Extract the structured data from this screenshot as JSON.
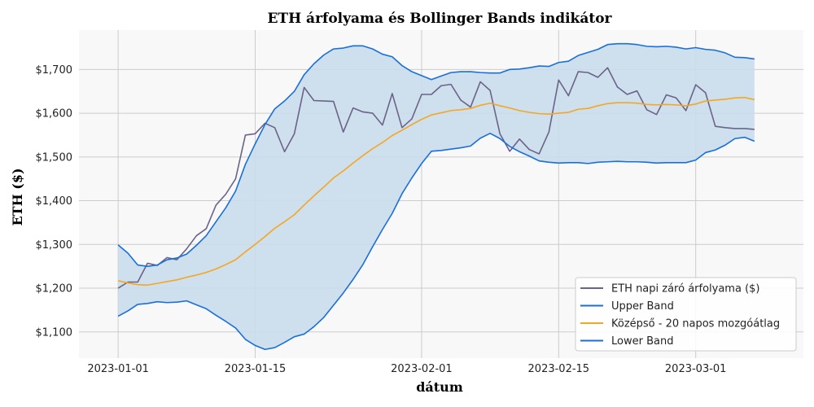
{
  "chart_data": {
    "type": "line",
    "title": "ETH árfolyama és Bollinger Bands indikátor",
    "xlabel": "dátum",
    "ylabel": "ETH ($)",
    "ylim": [
      1040,
      1790
    ],
    "xlim": [
      "2022-12-28",
      "2023-03-12"
    ],
    "x_ticks": [
      "2023-01-01",
      "2023-01-15",
      "2023-02-01",
      "2023-02-15",
      "2023-03-01"
    ],
    "y_ticks": [
      1100,
      1200,
      1300,
      1400,
      1500,
      1600,
      1700
    ],
    "y_tick_labels": [
      "$1,100",
      "$1,200",
      "$1,300",
      "$1,400",
      "$1,500",
      "$1,600",
      "$1,700"
    ],
    "grid": true,
    "legend_position": "bottom-right",
    "colors": {
      "close": "#6b6389",
      "upper": "#1a6fd8",
      "middle": "#f5a623",
      "lower": "#1a6fd8",
      "band_fill": "#c9dceb",
      "plot_bg": "#f8f8f8",
      "grid": "#cccccc"
    },
    "start_date": "2023-01-01",
    "series": [
      {
        "key": "close",
        "name": "ETH napi záró árfolyama ($)",
        "values": [
          1200,
          1214,
          1214,
          1257,
          1252,
          1270,
          1265,
          1290,
          1320,
          1336,
          1390,
          1415,
          1450,
          1550,
          1553,
          1577,
          1567,
          1512,
          1553,
          1659,
          1629,
          1628,
          1627,
          1557,
          1612,
          1603,
          1600,
          1573,
          1645,
          1567,
          1587,
          1643,
          1643,
          1663,
          1666,
          1630,
          1614,
          1672,
          1652,
          1553,
          1513,
          1541,
          1517,
          1507,
          1557,
          1676,
          1640,
          1695,
          1693,
          1682,
          1704,
          1660,
          1643,
          1651,
          1608,
          1597,
          1642,
          1635,
          1606,
          1665,
          1647,
          1570,
          1567,
          1565,
          1565,
          1563
        ]
      },
      {
        "key": "upper",
        "name": "Upper Band",
        "values": [
          1299,
          1280,
          1253,
          1250,
          1253,
          1265,
          1269,
          1278,
          1298,
          1320,
          1352,
          1384,
          1422,
          1483,
          1530,
          1574,
          1610,
          1628,
          1650,
          1688,
          1713,
          1733,
          1747,
          1749,
          1754,
          1754,
          1747,
          1735,
          1729,
          1709,
          1695,
          1686,
          1677,
          1685,
          1693,
          1695,
          1695,
          1693,
          1692,
          1692,
          1700,
          1701,
          1704,
          1708,
          1707,
          1716,
          1719,
          1732,
          1739,
          1746,
          1757,
          1759,
          1759,
          1757,
          1753,
          1752,
          1753,
          1751,
          1747,
          1750,
          1746,
          1744,
          1738,
          1728,
          1727,
          1724
        ]
      },
      {
        "key": "middle",
        "name": "Középső - 20 napos mozgóátlag",
        "values": [
          1217,
          1212,
          1208,
          1207,
          1211,
          1215,
          1219,
          1225,
          1230,
          1236,
          1244,
          1254,
          1265,
          1283,
          1300,
          1318,
          1337,
          1352,
          1368,
          1390,
          1411,
          1431,
          1452,
          1468,
          1486,
          1503,
          1519,
          1533,
          1549,
          1561,
          1574,
          1586,
          1596,
          1601,
          1606,
          1608,
          1611,
          1618,
          1623,
          1617,
          1612,
          1606,
          1602,
          1599,
          1598,
          1600,
          1602,
          1609,
          1611,
          1617,
          1622,
          1624,
          1624,
          1623,
          1620,
          1619,
          1620,
          1619,
          1617,
          1621,
          1628,
          1630,
          1632,
          1635,
          1636,
          1631
        ]
      },
      {
        "key": "lower",
        "name": "Lower Band",
        "values": [
          1136,
          1148,
          1163,
          1165,
          1169,
          1167,
          1168,
          1171,
          1162,
          1153,
          1138,
          1124,
          1109,
          1083,
          1069,
          1060,
          1064,
          1076,
          1089,
          1095,
          1112,
          1133,
          1161,
          1189,
          1220,
          1254,
          1295,
          1334,
          1371,
          1416,
          1452,
          1485,
          1513,
          1515,
          1518,
          1521,
          1525,
          1543,
          1554,
          1542,
          1524,
          1512,
          1502,
          1491,
          1488,
          1486,
          1487,
          1487,
          1485,
          1488,
          1489,
          1490,
          1489,
          1489,
          1488,
          1486,
          1487,
          1487,
          1487,
          1493,
          1510,
          1516,
          1527,
          1542,
          1545,
          1536
        ]
      }
    ]
  }
}
